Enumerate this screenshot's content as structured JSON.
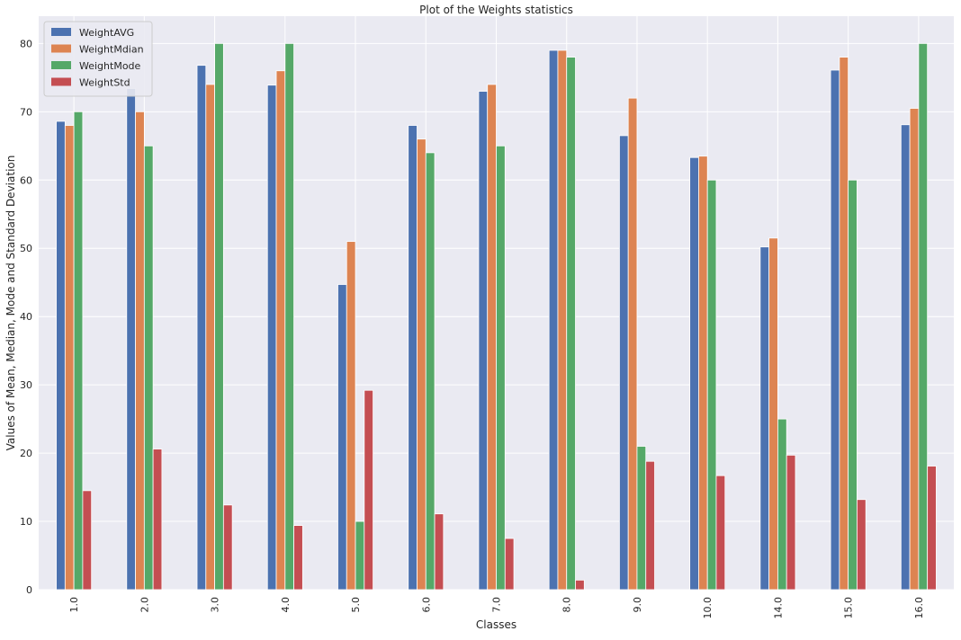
{
  "chart_data": {
    "type": "bar",
    "title": "Plot of the Weights statistics",
    "xlabel": "Classes",
    "ylabel": "Values of Mean, Median, Mode and Standard Deviation",
    "categories": [
      "1.0",
      "2.0",
      "3.0",
      "4.0",
      "5.0",
      "6.0",
      "7.0",
      "8.0",
      "9.0",
      "10.0",
      "14.0",
      "15.0",
      "16.0"
    ],
    "ylim": [
      0,
      84
    ],
    "yticks": [
      0,
      10,
      20,
      30,
      40,
      50,
      60,
      70,
      80
    ],
    "grid": true,
    "legend_position": "top-left",
    "background_color": "#eaeaf2",
    "grid_color": "#ffffff",
    "series": [
      {
        "name": "WeightAVG",
        "color": "#4c72b0",
        "values": [
          68.6,
          73.4,
          76.8,
          73.9,
          44.7,
          68.0,
          73.0,
          79.0,
          66.5,
          63.3,
          50.2,
          76.1,
          68.1
        ]
      },
      {
        "name": "WeightMdian",
        "color": "#dd8452",
        "values": [
          68.0,
          70.0,
          74.0,
          76.0,
          51.0,
          66.0,
          74.0,
          79.0,
          72.0,
          63.5,
          51.5,
          78.0,
          70.5
        ]
      },
      {
        "name": "WeightMode",
        "color": "#55a868",
        "values": [
          70.0,
          65.0,
          80.0,
          80.0,
          10.0,
          64.0,
          65.0,
          78.0,
          21.0,
          60.0,
          25.0,
          60.0,
          80.0
        ]
      },
      {
        "name": "WeightStd",
        "color": "#c44e52",
        "values": [
          14.5,
          20.6,
          12.4,
          9.4,
          29.2,
          11.1,
          7.5,
          1.4,
          18.8,
          16.7,
          19.7,
          13.2,
          18.1
        ]
      }
    ]
  }
}
